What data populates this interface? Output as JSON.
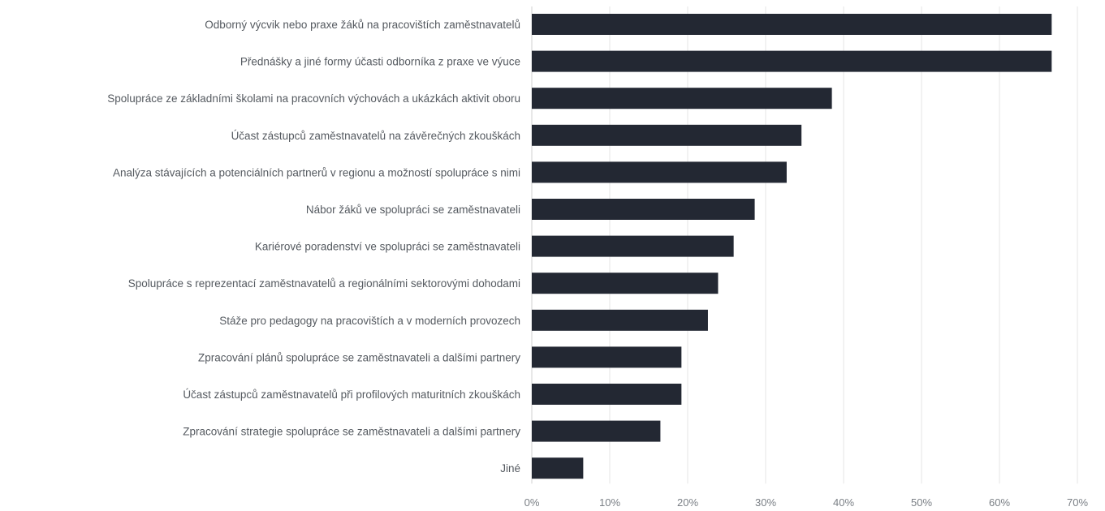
{
  "chart_data": {
    "type": "bar",
    "orientation": "horizontal",
    "title": "",
    "xlabel": "",
    "ylabel": "",
    "xlim": [
      0,
      70
    ],
    "value_unit": "%",
    "grid": true,
    "bar_color": "#232833",
    "x_ticks": [
      "0%",
      "10%",
      "20%",
      "30%",
      "40%",
      "50%",
      "60%",
      "70%"
    ],
    "categories": [
      "Odborný výcvik nebo praxe žáků na pracovištích zaměstnavatelů",
      "Přednášky a jiné formy účasti odborníka z praxe ve výuce",
      "Spolupráce ze základními školami na pracovních výchovách a ukázkách aktivit oboru",
      "Účast zástupců zaměstnavatelů na závěrečných zkouškách",
      "Analýza stávajících a potenciálních partnerů v regionu a možností spolupráce s nimi",
      "Nábor žáků ve spolupráci se zaměstnavateli",
      "Kariérové poradenství ve spolupráci se zaměstnavateli",
      "Spolupráce s reprezentací zaměstnavatelů a regionálními sektorovými dohodami",
      "Stáže pro pedagogy na pracovištích a v moderních provozech",
      "Zpracování plánů spolupráce se zaměstnavateli a dalšími partnery",
      "Účast zástupců zaměstnavatelů při profilových maturitních zkouškách",
      "Zpracování strategie spolupráce se zaměstnavateli a dalšími partnery",
      "Jiné"
    ],
    "values": [
      66.7,
      66.7,
      38.5,
      34.6,
      32.7,
      28.6,
      25.9,
      23.9,
      22.6,
      19.2,
      19.2,
      16.5,
      6.6
    ]
  }
}
